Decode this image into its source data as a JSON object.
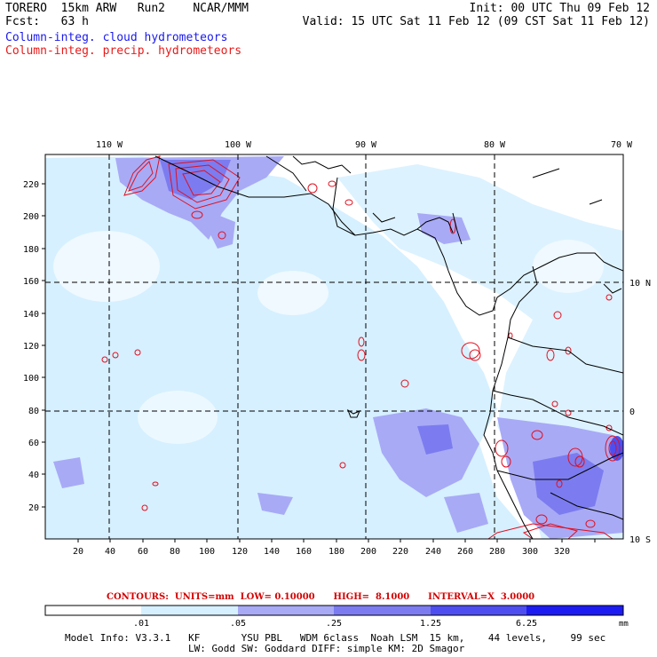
{
  "header": {
    "line1_left": "TORERO  15km ARW   Run2    NCAR/MMM",
    "line2_left": "Fcst:   63 h",
    "line1_right": "Init: 00 UTC Thu 09 Feb 12",
    "line2_right": "Valid: 15 UTC Sat 11 Feb 12 (09 CST Sat 11 Feb 12)"
  },
  "legend": {
    "cloud": "Column-integ. cloud hydrometeors",
    "precip": "Column-integ. precip. hydrometeors"
  },
  "map": {
    "x_ticks": [
      "20",
      "40",
      "60",
      "80",
      "100",
      "120",
      "140",
      "160",
      "180",
      "200",
      "220",
      "240",
      "260",
      "280",
      "300",
      "320"
    ],
    "y_ticks": [
      "20",
      "40",
      "60",
      "80",
      "100",
      "120",
      "140",
      "160",
      "180",
      "200",
      "220"
    ],
    "lon_labels": [
      "110 W",
      "100 W",
      "90 W",
      "80 W",
      "70 W"
    ],
    "lat_labels": [
      "10 N",
      "0",
      "10 S"
    ]
  },
  "contours_info": "CONTOURS:  UNITS=mm  LOW= 0.10000      HIGH=  8.1000      INTERVAL=X  3.0000",
  "colorbar": {
    "labels": [
      ".01",
      ".05",
      ".25",
      "1.25",
      "6.25"
    ],
    "unit": "mm",
    "colors": [
      "#ffffff",
      "#d6f0ff",
      "#a8aaf6",
      "#7c7cf0",
      "#4e4ef0",
      "#1c1cf2"
    ]
  },
  "footer": {
    "line1": "Model Info: V3.3.1   KF       YSU PBL   WDM 6class  Noah LSM  15 km,    44 levels,    99 sec",
    "line2": "LW: Godd SW: Goddard DIFF: simple KM: 2D Smagor"
  }
}
